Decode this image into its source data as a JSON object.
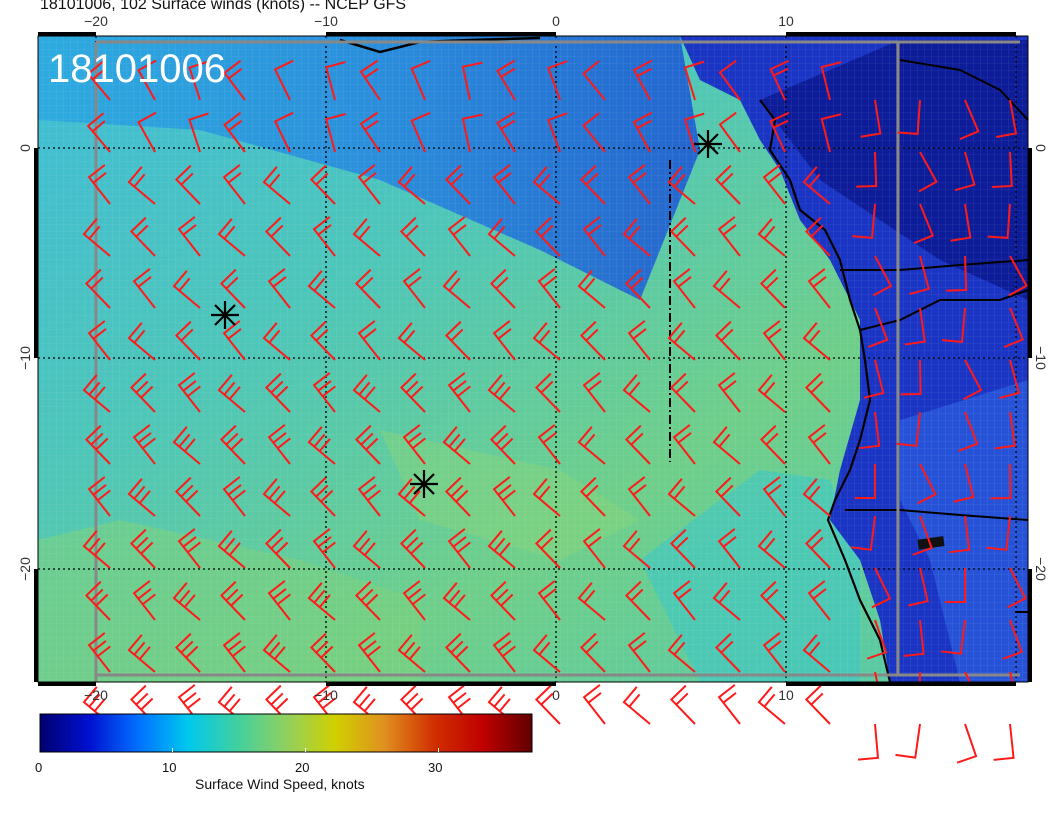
{
  "title": "18101006, 102 Surface winds (knots) -- NCEP GFS",
  "stamp": "18101006",
  "map": {
    "lon_range": [
      -22.5,
      20.5
    ],
    "lat_range": [
      -25.5,
      5.5
    ],
    "lon_ticks": [
      "−20",
      "−10",
      "0",
      "10"
    ],
    "lat_ticks": [
      "0",
      "−10",
      "−20"
    ],
    "colors": {
      "ocean_strong": "#7fd07a",
      "ocean_mid": "#39c6cc",
      "ocean_weak": "#2a8ae0",
      "land_low": "#1a2fc0",
      "barb": "#ff1a1a",
      "coast": "#000000"
    }
  },
  "markers": [
    "storm-center-1",
    "storm-center-2",
    "storm-center-3"
  ],
  "colorbar": {
    "title": "Surface Wind Speed, knots",
    "labels": [
      "0",
      "10",
      "20",
      "30"
    ],
    "min": 0,
    "max": 37,
    "stops": [
      "#000070",
      "#0010d0",
      "#0070ff",
      "#00c8ee",
      "#40d0a0",
      "#90d060",
      "#d0d000",
      "#e09020",
      "#d03000",
      "#c00000",
      "#600000"
    ]
  }
}
